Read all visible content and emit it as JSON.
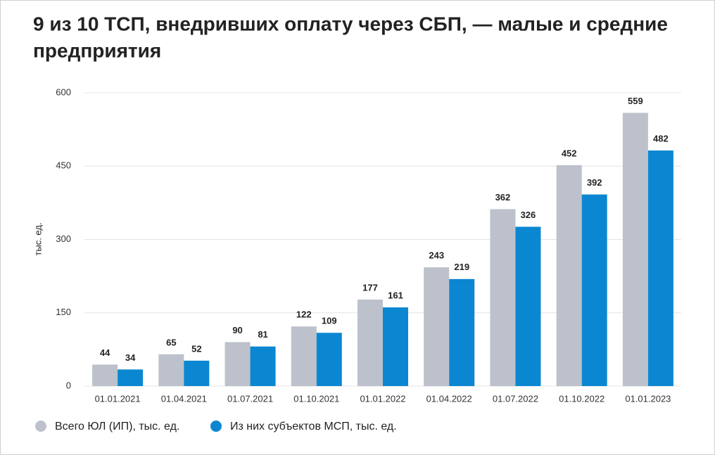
{
  "chart_data": {
    "type": "bar",
    "title": "9 из 10 ТСП, внедривших оплату через СБП, — малые и средние",
    "title_line2": "предприятия",
    "y_label": "тыс. ед.",
    "categories": [
      "01.01.2021",
      "01.04.2021",
      "01.07.2021",
      "01.10.2021",
      "01.01.2022",
      "01.04.2022",
      "01.07.2022",
      "01.10.2022",
      "01.01.2023"
    ],
    "series": [
      {
        "name": "Всего ЮЛ (ИП), тыс. ед.",
        "color": "#bcc1cb",
        "values": [
          44,
          65,
          90,
          122,
          177,
          243,
          362,
          452,
          559
        ]
      },
      {
        "name": "Из них субъектов МСП, тыс. ед.",
        "color": "#0b87d1",
        "values": [
          34,
          52,
          81,
          109,
          161,
          219,
          326,
          392,
          482
        ]
      }
    ],
    "ylim": [
      0,
      600
    ],
    "yticks": [
      0,
      150,
      300,
      450,
      600
    ],
    "grid": true,
    "legend": "bottom-left"
  }
}
